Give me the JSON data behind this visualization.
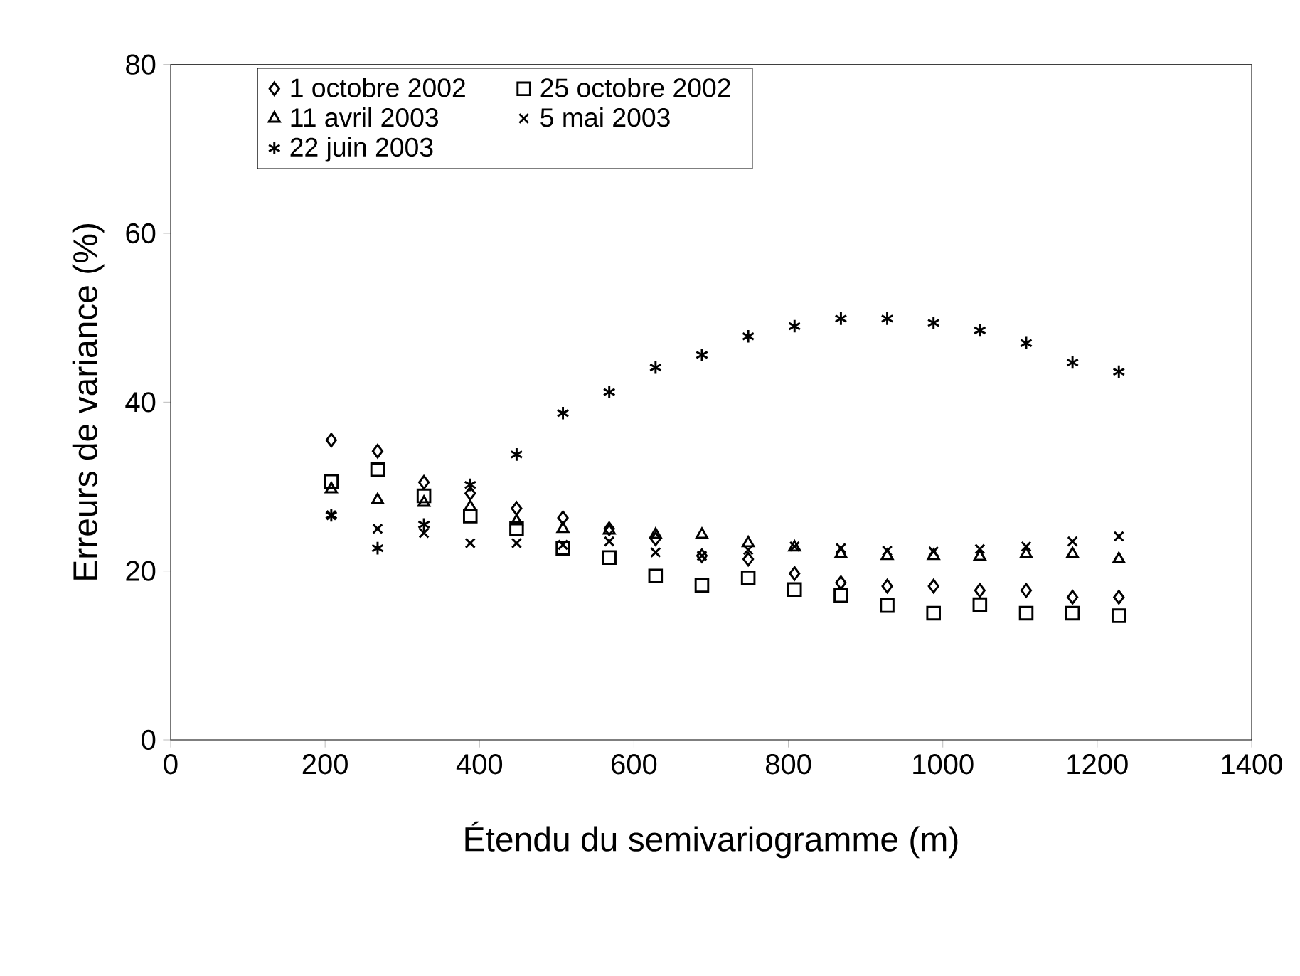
{
  "chart_data": {
    "type": "scatter",
    "xlabel": "Étendu du semivariogramme (m)",
    "ylabel": "Erreurs de variance (%)",
    "x": [
      208,
      268,
      328,
      388,
      448,
      508,
      568,
      628,
      688,
      748,
      808,
      868,
      928,
      988,
      1048,
      1108,
      1168,
      1228
    ],
    "xlim": [
      0,
      1400
    ],
    "xticks": [
      0,
      200,
      400,
      600,
      800,
      1000,
      1200,
      1400
    ],
    "ylim": [
      0,
      80
    ],
    "yticks": [
      0,
      20,
      40,
      60,
      80
    ],
    "legend": "top left",
    "grid": false,
    "series": [
      {
        "name": "1 octobre 2002",
        "color": "#000000",
        "marker": "diamond",
        "values": [
          35.5,
          34.2,
          30.5,
          29.2,
          27.4,
          26.3,
          25.0,
          23.8,
          21.8,
          21.4,
          19.7,
          18.6,
          18.2,
          18.2,
          17.7,
          17.7,
          16.9,
          16.9
        ]
      },
      {
        "name": "25 octobre 2002",
        "color": "#000000",
        "marker": "square",
        "values": [
          30.6,
          32.0,
          28.9,
          26.5,
          25.0,
          22.7,
          21.6,
          19.4,
          18.3,
          19.2,
          17.8,
          17.1,
          15.9,
          15.0,
          16.0,
          15.0,
          15.0,
          14.7
        ]
      },
      {
        "name": "11 avril 2003",
        "color": "#000000",
        "marker": "triangle",
        "values": [
          29.7,
          28.4,
          28.1,
          27.6,
          25.9,
          25.0,
          24.8,
          24.3,
          24.3,
          23.3,
          22.8,
          22.0,
          21.8,
          21.8,
          21.7,
          22.0,
          22.0,
          21.4
        ]
      },
      {
        "name": "5 mai 2003",
        "color": "#000000",
        "marker": "cross",
        "values": [
          26.6,
          25.0,
          24.5,
          23.3,
          23.3,
          23.1,
          23.5,
          22.2,
          21.8,
          22.5,
          22.9,
          22.7,
          22.4,
          22.3,
          22.6,
          22.9,
          23.5,
          24.1
        ]
      },
      {
        "name": "22 juin 2003",
        "color": "#000000",
        "values": [
          26.6,
          22.7,
          25.5,
          30.2,
          33.8,
          38.7,
          41.2,
          44.1,
          45.6,
          47.8,
          49.0,
          49.9,
          49.9,
          49.4,
          48.5,
          47.0,
          44.7,
          43.6
        ]
      }
    ]
  }
}
